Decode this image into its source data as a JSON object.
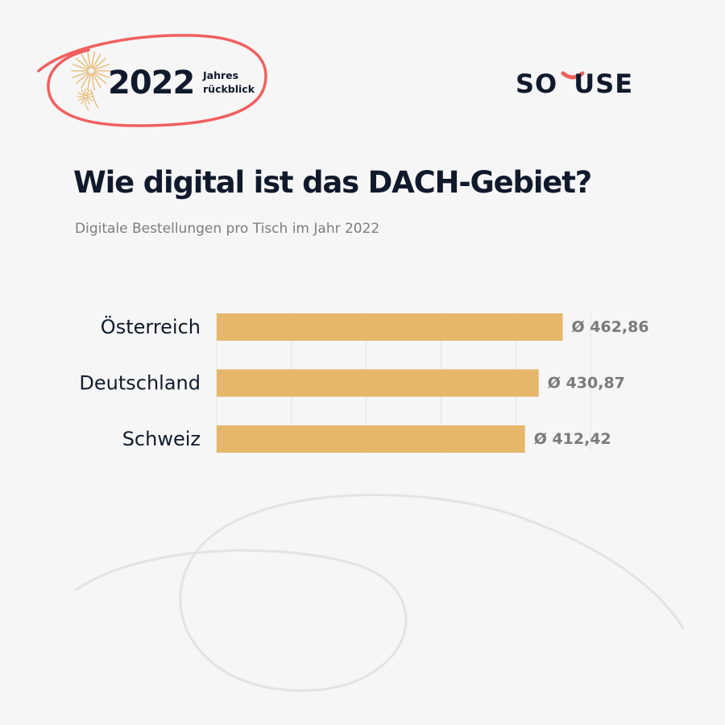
{
  "badge": {
    "year": "2022",
    "line1": "Jahres",
    "line2": "rückblick",
    "circle_color": "#f0605f",
    "firework_color": "#e6b76b"
  },
  "logo": {
    "left": "SO",
    "right": "USE",
    "accent_color": "#f0605f"
  },
  "title": "Wie digital ist das DACH-Gebiet?",
  "subtitle": "Digitale Bestellungen pro Tisch im Jahr 2022",
  "chart_data": {
    "type": "bar",
    "orientation": "horizontal",
    "title": "Wie digital ist das DACH-Gebiet?",
    "subtitle": "Digitale Bestellungen pro Tisch im Jahr 2022",
    "categories": [
      "Österreich",
      "Deutschland",
      "Schweiz"
    ],
    "values": [
      462.86,
      430.87,
      412.42
    ],
    "value_labels": [
      "Ø 462,86",
      "Ø 430,87",
      "Ø 412,42"
    ],
    "xlim": [
      0,
      500
    ],
    "bar_color": "#e6b76b",
    "grid": true,
    "xlabel": "",
    "ylabel": ""
  }
}
